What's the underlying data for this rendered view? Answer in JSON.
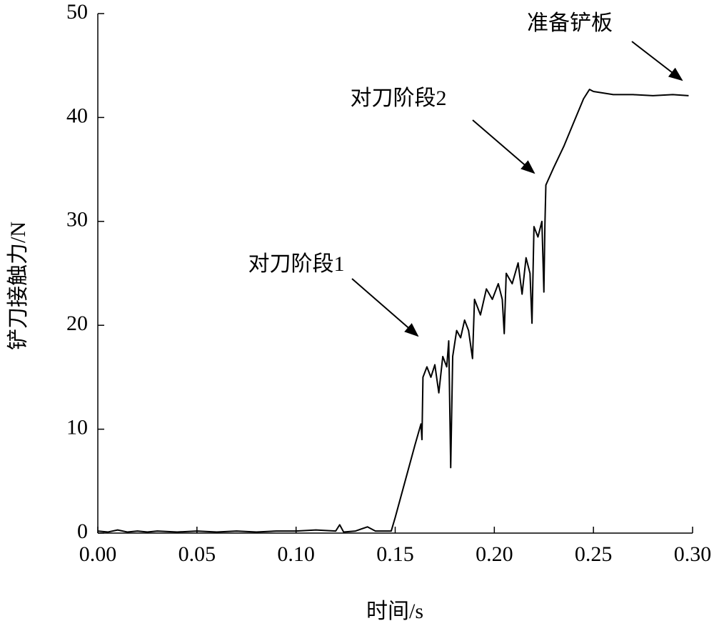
{
  "chart_data": {
    "type": "line",
    "x_label": "时间/s",
    "y_label": "铲刀接触力/N",
    "annotations": [
      "对刀阶段1",
      "对刀阶段2",
      "准备铲板"
    ],
    "xlim": [
      0,
      0.3
    ],
    "ylim": [
      0,
      50
    ],
    "xticks": [
      {
        "value": 0,
        "label": "0.00"
      },
      {
        "value": 0.05,
        "label": "0.05"
      },
      {
        "value": 0.1,
        "label": "0.10"
      },
      {
        "value": 0.15,
        "label": "0.15"
      },
      {
        "value": 0.2,
        "label": "0.20"
      },
      {
        "value": 0.25,
        "label": "0.25"
      },
      {
        "value": 0.3,
        "label": "0.30"
      }
    ],
    "yticks": [
      0,
      10,
      20,
      30,
      40,
      50
    ],
    "x": [
      0,
      0.005,
      0.01,
      0.015,
      0.02,
      0.025,
      0.03,
      0.04,
      0.05,
      0.06,
      0.07,
      0.08,
      0.09,
      0.1,
      0.11,
      0.12,
      0.122,
      0.124,
      0.13,
      0.136,
      0.14,
      0.148,
      0.15,
      0.155,
      0.16,
      0.163,
      0.1635,
      0.164,
      0.166,
      0.168,
      0.17,
      0.172,
      0.174,
      0.176,
      0.177,
      0.178,
      0.179,
      0.181,
      0.183,
      0.185,
      0.187,
      0.189,
      0.19,
      0.193,
      0.196,
      0.199,
      0.202,
      0.204,
      0.205,
      0.206,
      0.209,
      0.212,
      0.214,
      0.216,
      0.218,
      0.219,
      0.22,
      0.222,
      0.224,
      0.225,
      0.2255,
      0.226,
      0.23,
      0.235,
      0.24,
      0.245,
      0.248,
      0.25,
      0.26,
      0.27,
      0.28,
      0.29,
      0.298
    ],
    "series": [
      {
        "color": "#000000",
        "values": [
          0.2,
          0.1,
          0.3,
          0.1,
          0.2,
          0.1,
          0.2,
          0.1,
          0.2,
          0.1,
          0.2,
          0.1,
          0.2,
          0.2,
          0.3,
          0.2,
          0.8,
          0.1,
          0.2,
          0.6,
          0.2,
          0.2,
          1.5,
          5,
          8.5,
          10.5,
          9,
          15,
          16,
          15,
          16.2,
          13.5,
          17,
          16,
          18.5,
          6.3,
          17,
          19.5,
          18.8,
          20.5,
          19.5,
          16.8,
          22.5,
          21,
          23.5,
          22.5,
          24,
          22.5,
          19.2,
          25,
          24,
          26,
          23,
          26.5,
          25,
          20.2,
          29.5,
          28.5,
          30,
          23.2,
          29.5,
          33.5,
          35.2,
          37.2,
          39.5,
          41.8,
          42.7,
          42.5,
          42.2,
          42.2,
          42.1,
          42.2,
          42.1
        ]
      }
    ]
  }
}
